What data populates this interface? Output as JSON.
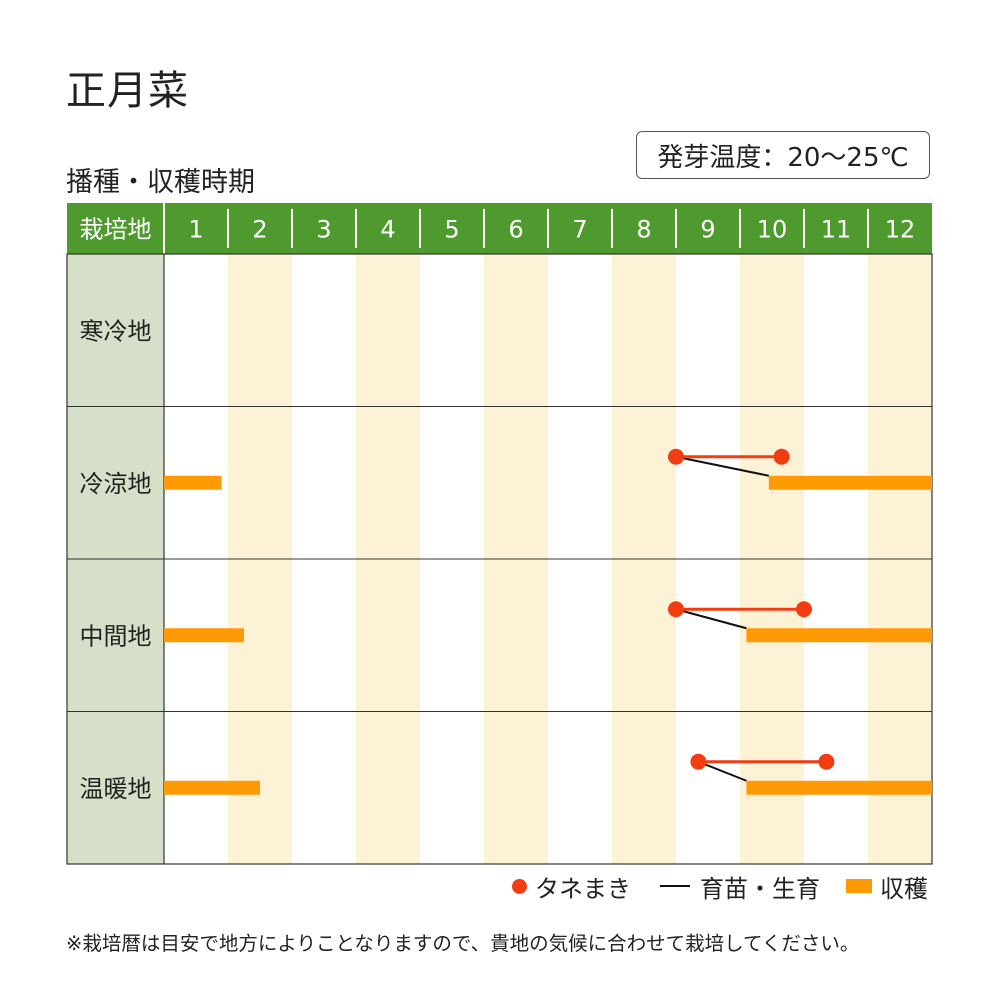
{
  "header": {
    "title": "正月菜",
    "subtitle": "播種・収穫時期",
    "germination_temp": "発芽温度：20～25℃"
  },
  "chart_data": {
    "type": "gantt",
    "corner_label": "栽培地",
    "months": [
      "1",
      "2",
      "3",
      "4",
      "5",
      "6",
      "7",
      "8",
      "9",
      "10",
      "11",
      "12"
    ],
    "regions": [
      {
        "name": "寒冷地",
        "sowing": null,
        "growing": null,
        "harvest": []
      },
      {
        "name": "冷涼地",
        "sowing": [
          9.0,
          10.65
        ],
        "growing": [
          9.0,
          10.45
        ],
        "harvest": [
          [
            1.0,
            1.9
          ],
          [
            10.45,
            13.0
          ]
        ]
      },
      {
        "name": "中間地",
        "sowing": [
          9.0,
          11.0
        ],
        "growing": [
          9.0,
          10.1
        ],
        "harvest": [
          [
            1.0,
            2.25
          ],
          [
            10.1,
            13.0
          ]
        ]
      },
      {
        "name": "温暖地",
        "sowing": [
          9.35,
          11.35
        ],
        "growing": [
          9.35,
          10.1
        ],
        "harvest": [
          [
            1.0,
            2.5
          ],
          [
            10.1,
            13.0
          ]
        ]
      }
    ],
    "colors": {
      "header_bg": "#4f9a2e",
      "header_text": "#ffffff",
      "label_col_bg": "#d6dfc7",
      "stripe": "#fdf2d6",
      "sowing": "#f23c12",
      "growing": "#111111",
      "harvest": "#ff9a05"
    }
  },
  "legend": {
    "sowing": "タネまき",
    "growing": "育苗・生育",
    "harvest": "収穫"
  },
  "footnote": "※栽培暦は目安で地方によりことなりますので、貴地の気候に合わせて栽培してください。"
}
